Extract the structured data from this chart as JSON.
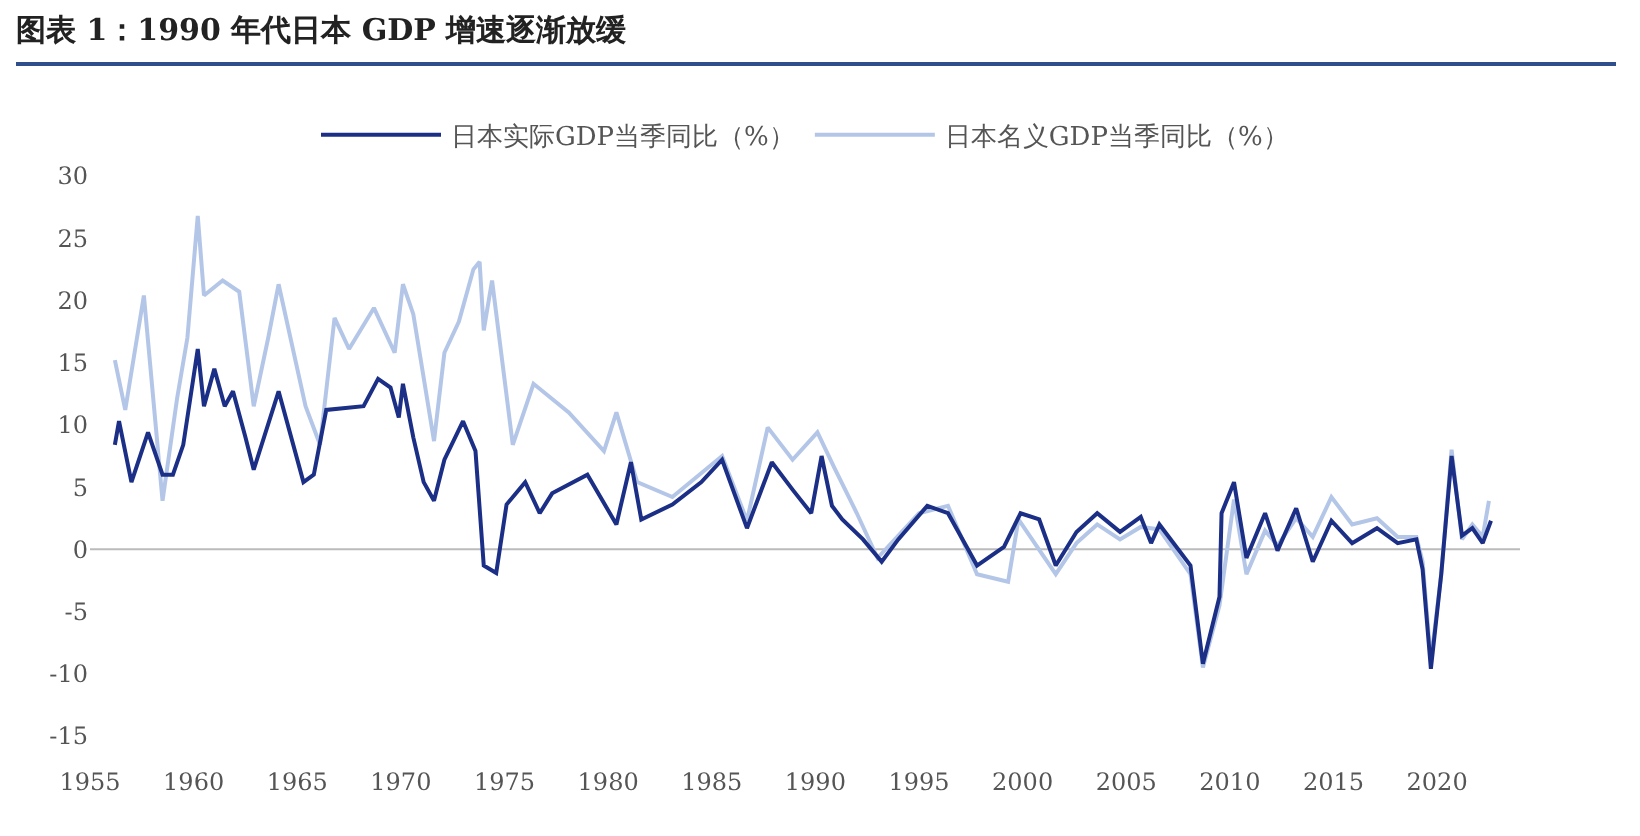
{
  "chart_data": {
    "type": "line",
    "title": "图表 1：1990 年代日本 GDP 增速逐渐放缓",
    "xlim": [
      1955,
      2024
    ],
    "xticks": [
      1955,
      1960,
      1965,
      1970,
      1975,
      1980,
      1985,
      1990,
      1995,
      2000,
      2005,
      2010,
      2015,
      2020
    ],
    "ylim": [
      -15,
      30
    ],
    "yticks": [
      -15,
      -10,
      -5,
      0,
      5,
      10,
      15,
      20,
      25,
      30
    ],
    "grid": false,
    "legend": "top",
    "ref_lines": [
      {
        "axis": "y",
        "value": 0,
        "color": "#bbbbbb"
      }
    ],
    "marker": "none",
    "line_style": "solid",
    "series": [
      {
        "name": "日本实际GDP当季同比（%）",
        "color": "#1c2f86",
        "x": [
          1956.2,
          1956.4,
          1957.0,
          1957.8,
          1958.5,
          1959.0,
          1959.5,
          1960.2,
          1960.5,
          1961.0,
          1961.5,
          1961.9,
          1962.5,
          1962.9,
          1964.1,
          1965.3,
          1965.8,
          1966.4,
          1968.2,
          1968.9,
          1969.5,
          1969.9,
          1970.1,
          1970.6,
          1971.1,
          1971.6,
          1972.1,
          1973.0,
          1973.6,
          1974.0,
          1974.6,
          1975.1,
          1976.0,
          1976.7,
          1977.3,
          1979.0,
          1980.4,
          1981.1,
          1981.6,
          1983.1,
          1984.5,
          1985.5,
          1986.7,
          1987.9,
          1988.9,
          1989.8,
          1990.3,
          1990.8,
          1991.3,
          1992.3,
          1993.2,
          1994.0,
          1995.4,
          1996.4,
          1997.8,
          1999.1,
          1999.9,
          2000.8,
          2001.6,
          2002.6,
          2003.6,
          2004.7,
          2005.7,
          2006.2,
          2006.6,
          2008.1,
          2008.7,
          2009.5,
          2009.6,
          2010.2,
          2010.8,
          2011.7,
          2012.3,
          2013.2,
          2014.0,
          2014.9,
          2015.9,
          2017.1,
          2018.1,
          2019.0,
          2019.3,
          2019.7,
          2020.2,
          2020.7,
          2021.2,
          2021.7,
          2022.2,
          2022.6
        ],
        "values": [
          8.4,
          10.3,
          5.4,
          9.4,
          6,
          6,
          8.4,
          16.1,
          11.5,
          14.5,
          11.5,
          12.7,
          9,
          6.4,
          12.7,
          5.4,
          6,
          11.2,
          11.5,
          13.7,
          13,
          10.6,
          13.3,
          9,
          5.4,
          3.9,
          7.2,
          10.3,
          7.9,
          -1.3,
          -1.9,
          3.6,
          5.4,
          2.9,
          4.5,
          6,
          2,
          7,
          2.4,
          3.6,
          5.4,
          7.2,
          1.7,
          7,
          4.8,
          2.9,
          7.5,
          3.5,
          2.4,
          0.8,
          -1,
          0.8,
          3.5,
          2.9,
          -1.3,
          0.2,
          2.9,
          2.4,
          -1.3,
          1.4,
          2.9,
          1.4,
          2.6,
          0.5,
          2,
          -1.3,
          -9.2,
          -3.8,
          2.9,
          5.4,
          -0.7,
          2.9,
          -0.1,
          3.3,
          -1,
          2.3,
          0.5,
          1.7,
          0.5,
          0.8,
          -1.6,
          -9.6,
          -2,
          7.5,
          1.1,
          1.7,
          0.5,
          2.3
        ]
      },
      {
        "name": "日本名义GDP当季同比（%）",
        "color": "#b4c6e7",
        "x": [
          1956.2,
          1956.7,
          1957.6,
          1958.5,
          1959.2,
          1959.7,
          1960.2,
          1960.5,
          1961.4,
          1962.2,
          1962.9,
          1963.6,
          1964.1,
          1965.4,
          1966.1,
          1966.8,
          1967.5,
          1968.7,
          1969.7,
          1970.1,
          1970.6,
          1971.6,
          1972.1,
          1972.8,
          1973.5,
          1973.8,
          1974.0,
          1974.4,
          1975.4,
          1976.4,
          1978.1,
          1979.8,
          1980.4,
          1981.4,
          1983.1,
          1985.5,
          1986.7,
          1987.7,
          1988.9,
          1990.1,
          1990.9,
          1992.0,
          1993.0,
          1995.0,
          1996.4,
          1997.8,
          1999.3,
          1999.8,
          2001.6,
          2002.6,
          2003.6,
          2004.7,
          2005.7,
          2006.6,
          2008.1,
          2008.7,
          2009.5,
          2010.2,
          2010.8,
          2011.7,
          2012.3,
          2013.2,
          2014.0,
          2014.9,
          2015.9,
          2017.1,
          2018.1,
          2019.0,
          2019.3,
          2019.7,
          2020.2,
          2020.7,
          2021.2,
          2021.7,
          2022.2,
          2022.5
        ],
        "values": [
          15.2,
          11.2,
          20.4,
          3.9,
          12.1,
          17,
          26.8,
          20.4,
          21.6,
          20.7,
          11.5,
          17,
          21.3,
          11.5,
          8.4,
          18.6,
          16.1,
          19.4,
          15.8,
          21.3,
          18.9,
          8.7,
          15.8,
          18.3,
          22.5,
          23.1,
          17.6,
          21.6,
          8.4,
          13.3,
          11,
          7.9,
          11,
          5.4,
          4.2,
          7.5,
          2.3,
          9.8,
          7.2,
          9.4,
          6.6,
          2.9,
          -0.7,
          2.9,
          3.5,
          -2,
          -2.6,
          2.4,
          -2,
          0.5,
          2,
          0.8,
          1.8,
          1.6,
          -2,
          -9.5,
          -4.5,
          4,
          -2,
          1.5,
          0.3,
          2.5,
          1,
          4.2,
          2,
          2.5,
          1,
          1,
          -1,
          -9,
          -2,
          8,
          0.8,
          2,
          1,
          3.9
        ]
      }
    ]
  }
}
